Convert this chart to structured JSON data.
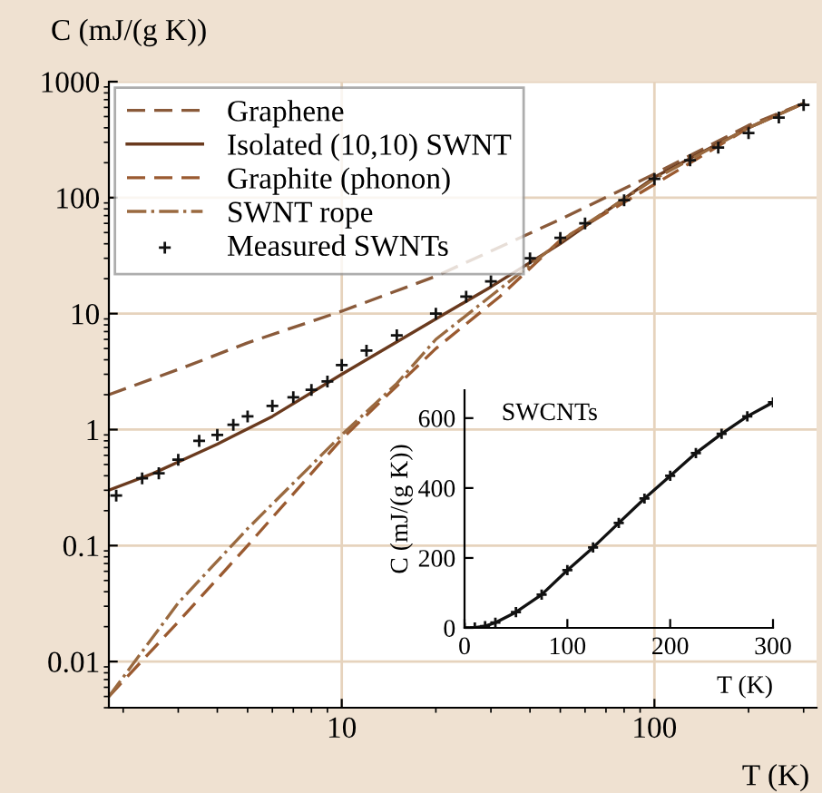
{
  "chart_data": [
    {
      "type": "line",
      "xlabel": "T (K)",
      "ylabel": "C (mJ/(g K))",
      "log": "xy",
      "xlim": [
        1.8,
        330
      ],
      "ylim": [
        0.004,
        1000
      ],
      "xticks": [
        10,
        100
      ],
      "yticks": [
        0.01,
        0.1,
        1,
        10,
        100,
        1000
      ],
      "grid": true,
      "legend": "top left",
      "series": [
        {
          "name": "Graphene",
          "color": "#8a5a3a",
          "line_style": "dashed",
          "marker": "none",
          "x": [
            1.8,
            3,
            5,
            10,
            20,
            50,
            100,
            200,
            300
          ],
          "values": [
            2,
            3.3,
            5.6,
            10.5,
            21,
            65,
            160,
            420,
            650
          ]
        },
        {
          "name": "Isolated (10,10) SWNT",
          "color": "#6a3a1e",
          "line_style": "solid",
          "marker": "none",
          "x": [
            1.8,
            2.5,
            4,
            6,
            10,
            20,
            30,
            50,
            100,
            200,
            300
          ],
          "values": [
            0.3,
            0.42,
            0.75,
            1.3,
            3,
            9,
            17,
            40,
            150,
            400,
            650
          ]
        },
        {
          "name": "Graphite (phonon)",
          "color": "#9a5a30",
          "line_style": "dashed",
          "marker": "none",
          "x": [
            1.8,
            3,
            5,
            10,
            20,
            32,
            50,
            100,
            200,
            300
          ],
          "values": [
            0.005,
            0.022,
            0.1,
            0.83,
            5,
            14,
            43,
            130,
            400,
            650
          ]
        },
        {
          "name": "SWNT rope",
          "color": "#9a6a40",
          "line_style": "dashdot",
          "marker": "none",
          "x": [
            1.8,
            3,
            5,
            10,
            15,
            20,
            50,
            100,
            200,
            300
          ],
          "values": [
            0.005,
            0.032,
            0.14,
            0.9,
            2.5,
            6,
            42,
            145,
            400,
            650
          ]
        },
        {
          "name": "Measured SWNTs",
          "type": "scatter",
          "color": "#111111",
          "marker": "cross",
          "x": [
            1.9,
            2.3,
            2.6,
            3,
            3.5,
            4,
            4.5,
            5,
            6,
            7,
            8,
            9,
            10,
            12,
            15,
            20,
            25,
            30,
            40,
            50,
            60,
            80,
            100,
            130,
            160,
            200,
            250,
            300
          ],
          "values": [
            0.27,
            0.38,
            0.42,
            0.55,
            0.8,
            0.9,
            1.1,
            1.3,
            1.6,
            1.9,
            2.2,
            2.6,
            3.6,
            4.8,
            6.5,
            10,
            14,
            19,
            30,
            45,
            60,
            95,
            145,
            210,
            270,
            360,
            490,
            630
          ]
        }
      ]
    },
    {
      "type": "line",
      "xlabel": "T (K)",
      "ylabel": "C (mJ/(g K))",
      "xlim": [
        0,
        300
      ],
      "ylim": [
        0,
        680
      ],
      "xticks": [
        0,
        100,
        200,
        300
      ],
      "yticks": [
        0,
        200,
        400,
        600
      ],
      "annotations": [
        "SWCNTs"
      ],
      "series": [
        {
          "color": "#111111",
          "marker": "cross",
          "line_style": "solid",
          "x": [
            0,
            10,
            20,
            30,
            50,
            75,
            100,
            125,
            150,
            175,
            200,
            225,
            250,
            275,
            300
          ],
          "values": [
            0,
            1,
            5,
            15,
            45,
            95,
            165,
            230,
            300,
            370,
            435,
            500,
            555,
            605,
            645
          ]
        }
      ]
    }
  ]
}
